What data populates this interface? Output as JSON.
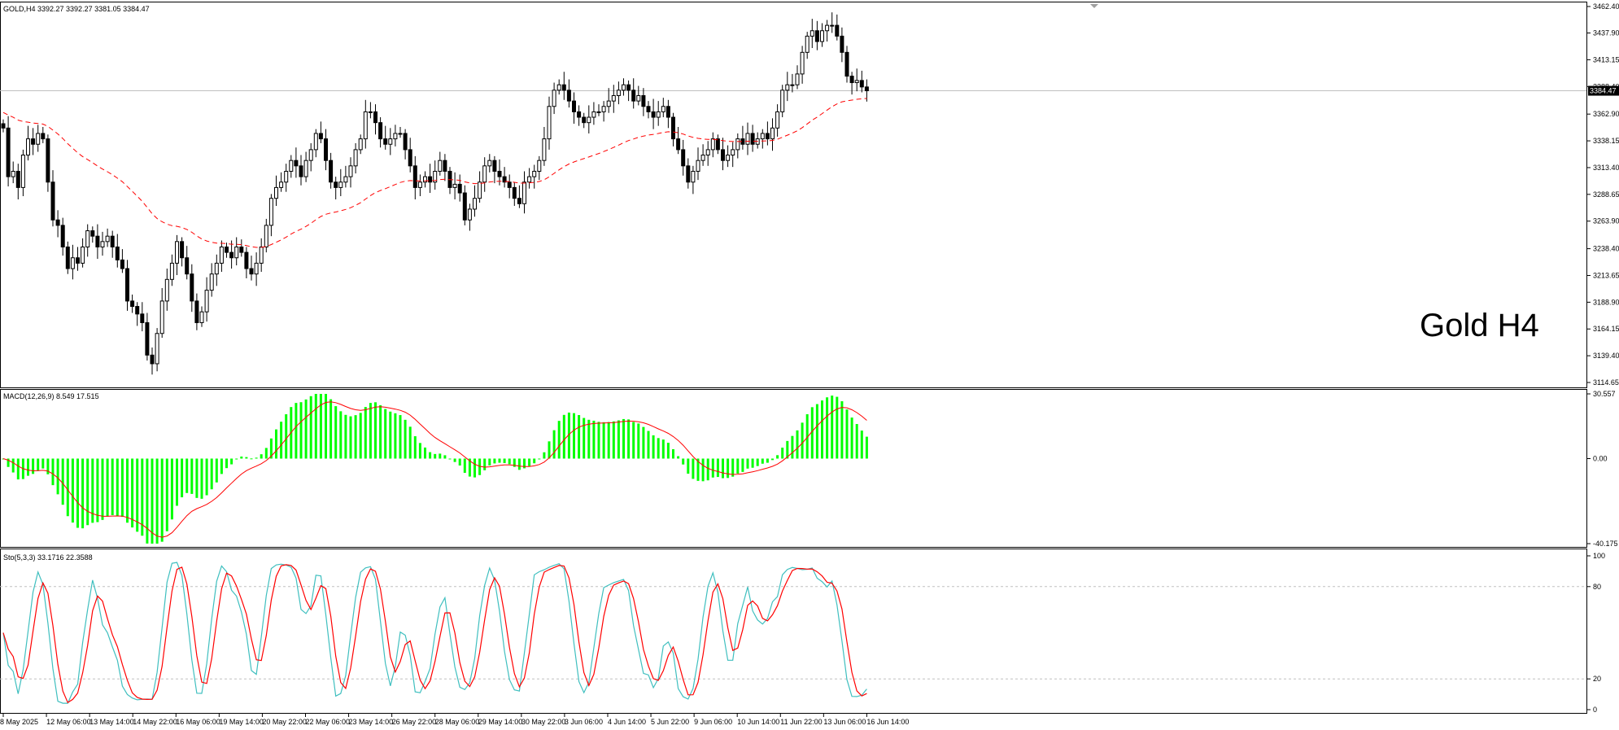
{
  "window": {
    "price_header": "GOLD,H4  3392.27 3392.27 3381.05 3384.47",
    "macd_header": "MACD(12,26,9) 8.549 17.515",
    "sto_header": "Sto(5,3,3) 33.1716 22.3588",
    "big_label": "Gold H4"
  },
  "colors": {
    "background": "#ffffff",
    "border": "#000000",
    "candle": "#000000",
    "ma": "#ff0000",
    "macd_hist": "#00ff00",
    "macd_signal": "#ff0000",
    "sto_main": "#3fbfbf",
    "sto_signal": "#ff0000",
    "grid": "#c0c0c0"
  },
  "price_axis": {
    "ticks": [
      "3462.40",
      "3437.90",
      "3413.15",
      "3388.40",
      "3362.90",
      "3338.15",
      "3313.40",
      "3288.65",
      "3263.90",
      "3238.40",
      "3213.65",
      "3188.90",
      "3164.15",
      "3139.40",
      "3114.65"
    ],
    "ylim": [
      3114.65,
      3462.4
    ],
    "current_price": "3384.47",
    "current_value": 3384.47
  },
  "macd_axis": {
    "ticks": [
      "30.557",
      "0.00",
      "-40.175"
    ],
    "ylim": [
      -40.175,
      30.557
    ]
  },
  "sto_axis": {
    "ticks": [
      "100",
      "80",
      "20",
      "0"
    ],
    "levels": [
      80,
      20
    ]
  },
  "time_axis": {
    "labels": [
      "8 May 2025",
      "12 May 06:00",
      "13 May 14:00",
      "14 May 22:00",
      "16 May 06:00",
      "19 May 14:00",
      "20 May 22:00",
      "22 May 06:00",
      "23 May 14:00",
      "26 May 22:00",
      "28 May 06:00",
      "29 May 14:00",
      "30 May 22:00",
      "3 Jun 06:00",
      "4 Jun 14:00",
      "5 Jun 22:00",
      "9 Jun 06:00",
      "10 Jun 14:00",
      "11 Jun 22:00",
      "13 Jun 06:00",
      "16 Jun 14:00"
    ]
  },
  "chart_data": [
    {
      "type": "candlestick",
      "symbol": "GOLD",
      "timeframe": "H4",
      "ylim": [
        3114.65,
        3462.4
      ],
      "closes": [
        3350,
        3305,
        3310,
        3295,
        3325,
        3340,
        3335,
        3345,
        3340,
        3300,
        3265,
        3260,
        3240,
        3220,
        3230,
        3225,
        3240,
        3255,
        3250,
        3240,
        3245,
        3250,
        3240,
        3228,
        3220,
        3190,
        3185,
        3178,
        3170,
        3140,
        3132,
        3160,
        3190,
        3210,
        3225,
        3245,
        3230,
        3215,
        3190,
        3170,
        3180,
        3200,
        3215,
        3225,
        3240,
        3235,
        3230,
        3240,
        3235,
        3220,
        3215,
        3225,
        3240,
        3260,
        3285,
        3295,
        3300,
        3310,
        3320,
        3315,
        3305,
        3320,
        3330,
        3345,
        3340,
        3320,
        3300,
        3295,
        3300,
        3305,
        3315,
        3330,
        3340,
        3365,
        3365,
        3355,
        3340,
        3335,
        3340,
        3345,
        3345,
        3330,
        3315,
        3295,
        3300,
        3305,
        3300,
        3310,
        3320,
        3310,
        3295,
        3298,
        3290,
        3265,
        3275,
        3285,
        3300,
        3315,
        3320,
        3310,
        3305,
        3300,
        3295,
        3285,
        3280,
        3300,
        3305,
        3310,
        3320,
        3340,
        3370,
        3385,
        3390,
        3385,
        3375,
        3365,
        3360,
        3355,
        3360,
        3365,
        3365,
        3370,
        3375,
        3380,
        3385,
        3390,
        3385,
        3375,
        3380,
        3370,
        3365,
        3360,
        3365,
        3370,
        3360,
        3340,
        3330,
        3315,
        3300,
        3310,
        3320,
        3325,
        3330,
        3340,
        3330,
        3320,
        3325,
        3330,
        3340,
        3335,
        3345,
        3335,
        3340,
        3345,
        3340,
        3350,
        3365,
        3385,
        3390,
        3390,
        3400,
        3420,
        3435,
        3440,
        3430,
        3440,
        3445,
        3445,
        3435,
        3420,
        3398,
        3392,
        3394,
        3388,
        3384.47
      ],
      "ma_type": "dashed moving average"
    },
    {
      "type": "macd",
      "params": "12,26,9",
      "value": 8.549,
      "signal": 17.515,
      "ylim": [
        -40.175,
        30.557
      ]
    },
    {
      "type": "stochastic",
      "params": "5,3,3",
      "main": 33.1716,
      "signal": 22.3588,
      "ylim": [
        0,
        100
      ],
      "levels": [
        80,
        20
      ]
    }
  ]
}
